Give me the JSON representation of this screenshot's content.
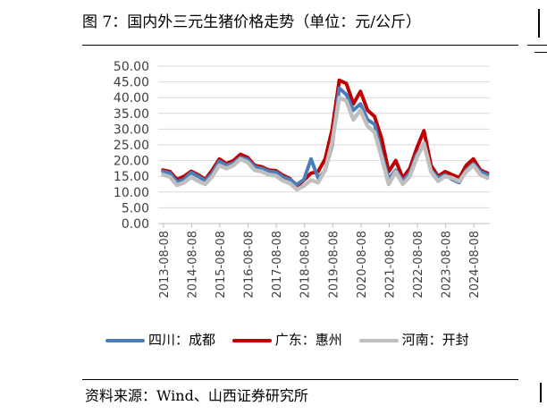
{
  "figure": {
    "title": "图 7：国内外三元生猪价格走势（单位：元/公斤）",
    "source": "资料来源：Wind、山西证券研究所"
  },
  "chart_data": {
    "type": "line",
    "title": "",
    "xlabel": "",
    "ylabel": "",
    "ylim": [
      0,
      50
    ],
    "yticks": [
      "0.00",
      "5.00",
      "10.00",
      "15.00",
      "20.00",
      "25.00",
      "30.00",
      "35.00",
      "40.00",
      "45.00",
      "50.00"
    ],
    "xticks": [
      "2013-08-08",
      "2014-08-08",
      "2015-08-08",
      "2016-08-08",
      "2017-08-08",
      "2018-08-08",
      "2019-08-08",
      "2020-08-08",
      "2021-08-08",
      "2022-08-08",
      "2023-08-08",
      "2024-08-08"
    ],
    "grid": true,
    "legend_position": "bottom",
    "x": [
      "2013-08",
      "2013-11",
      "2014-02",
      "2014-05",
      "2014-08",
      "2014-11",
      "2015-02",
      "2015-05",
      "2015-08",
      "2015-11",
      "2016-02",
      "2016-05",
      "2016-08",
      "2016-11",
      "2017-02",
      "2017-05",
      "2017-08",
      "2017-11",
      "2018-02",
      "2018-05",
      "2018-08",
      "2018-11",
      "2019-02",
      "2019-05",
      "2019-08",
      "2019-11",
      "2020-02",
      "2020-05",
      "2020-08",
      "2020-11",
      "2021-02",
      "2021-05",
      "2021-08",
      "2021-11",
      "2022-02",
      "2022-05",
      "2022-08",
      "2022-11",
      "2023-02",
      "2023-05",
      "2023-08",
      "2023-11",
      "2024-02",
      "2024-05",
      "2024-08",
      "2024-11",
      "2025-02"
    ],
    "series": [
      {
        "name": "四川：成都",
        "color": "#4a7ebb",
        "values": [
          16.6,
          16.0,
          13.2,
          14.0,
          16.2,
          15.0,
          13.6,
          16.0,
          19.8,
          18.5,
          19.2,
          21.0,
          20.3,
          18.0,
          17.5,
          16.6,
          16.3,
          14.8,
          14.0,
          12.4,
          14.0,
          20.5,
          14.5,
          16.8,
          25.0,
          43.0,
          41.0,
          36.0,
          38.0,
          33.0,
          31.5,
          22.0,
          14.2,
          17.0,
          13.5,
          16.0,
          22.0,
          25.0,
          17.0,
          14.5,
          15.5,
          14.0,
          13.0,
          17.0,
          19.0,
          16.5,
          15.5
        ]
      },
      {
        "name": "广东：惠州",
        "color": "#c00000",
        "values": [
          17.0,
          16.5,
          14.0,
          15.0,
          16.6,
          15.5,
          14.0,
          17.0,
          20.5,
          19.0,
          20.0,
          22.0,
          21.0,
          18.5,
          18.0,
          17.0,
          16.8,
          15.3,
          14.3,
          11.8,
          13.8,
          16.0,
          16.5,
          20.5,
          30.0,
          45.5,
          44.5,
          38.0,
          42.0,
          36.0,
          34.0,
          27.0,
          16.5,
          20.0,
          14.5,
          17.5,
          24.0,
          29.5,
          18.5,
          15.0,
          16.5,
          15.5,
          14.5,
          18.5,
          20.5,
          17.0,
          16.0
        ]
      },
      {
        "name": "河南：开封",
        "color": "#bfbfbf",
        "values": [
          15.5,
          14.8,
          12.2,
          13.0,
          14.8,
          13.5,
          12.5,
          15.0,
          18.5,
          17.5,
          18.5,
          20.5,
          19.5,
          17.0,
          16.5,
          15.5,
          15.2,
          13.6,
          12.8,
          10.8,
          12.0,
          13.8,
          13.0,
          17.0,
          26.0,
          40.0,
          39.0,
          33.0,
          36.0,
          31.0,
          29.0,
          21.0,
          12.5,
          16.5,
          12.5,
          15.0,
          21.0,
          25.5,
          16.5,
          13.5,
          15.0,
          14.5,
          13.5,
          16.5,
          18.5,
          15.5,
          14.5
        ]
      }
    ]
  }
}
